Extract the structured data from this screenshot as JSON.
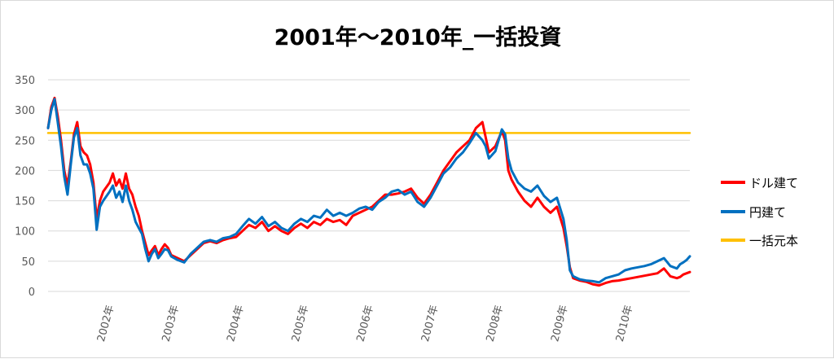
{
  "chart_data": {
    "type": "line",
    "title": "2001年～2010年_一括投資",
    "xlabel": "",
    "ylabel": "",
    "ylim": [
      0,
      350
    ],
    "yticks": [
      0,
      50,
      100,
      150,
      200,
      250,
      300,
      350
    ],
    "xlim": [
      2001.05,
      2010.95
    ],
    "xtick_labels": [
      {
        "x": 2002,
        "label": "2002年"
      },
      {
        "x": 2003,
        "label": "2003年"
      },
      {
        "x": 2004,
        "label": "2004年"
      },
      {
        "x": 2005,
        "label": "2005年"
      },
      {
        "x": 2006,
        "label": "2006年"
      },
      {
        "x": 2007,
        "label": "2007年"
      },
      {
        "x": 2008,
        "label": "2008年"
      },
      {
        "x": 2009,
        "label": "2009年"
      },
      {
        "x": 2010,
        "label": "2010年"
      }
    ],
    "grid": "horizontal",
    "legend_position": "right",
    "series": [
      {
        "name": "ドル建て",
        "color": "#ff0000",
        "points": [
          [
            2001.05,
            270
          ],
          [
            2001.1,
            305
          ],
          [
            2001.15,
            320
          ],
          [
            2001.2,
            290
          ],
          [
            2001.25,
            250
          ],
          [
            2001.3,
            200
          ],
          [
            2001.35,
            175
          ],
          [
            2001.4,
            215
          ],
          [
            2001.45,
            260
          ],
          [
            2001.5,
            280
          ],
          [
            2001.55,
            240
          ],
          [
            2001.6,
            230
          ],
          [
            2001.65,
            225
          ],
          [
            2001.7,
            210
          ],
          [
            2001.75,
            180
          ],
          [
            2001.8,
            120
          ],
          [
            2001.85,
            150
          ],
          [
            2001.9,
            165
          ],
          [
            2002.0,
            180
          ],
          [
            2002.05,
            195
          ],
          [
            2002.1,
            175
          ],
          [
            2002.15,
            185
          ],
          [
            2002.2,
            170
          ],
          [
            2002.25,
            195
          ],
          [
            2002.3,
            170
          ],
          [
            2002.35,
            160
          ],
          [
            2002.4,
            140
          ],
          [
            2002.45,
            125
          ],
          [
            2002.5,
            100
          ],
          [
            2002.55,
            80
          ],
          [
            2002.6,
            60
          ],
          [
            2002.65,
            68
          ],
          [
            2002.7,
            75
          ],
          [
            2002.75,
            60
          ],
          [
            2002.8,
            70
          ],
          [
            2002.85,
            78
          ],
          [
            2002.9,
            72
          ],
          [
            2002.95,
            60
          ],
          [
            2003.05,
            55
          ],
          [
            2003.15,
            50
          ],
          [
            2003.25,
            60
          ],
          [
            2003.35,
            70
          ],
          [
            2003.45,
            80
          ],
          [
            2003.55,
            83
          ],
          [
            2003.65,
            80
          ],
          [
            2003.75,
            85
          ],
          [
            2003.85,
            88
          ],
          [
            2003.95,
            90
          ],
          [
            2004.05,
            100
          ],
          [
            2004.15,
            110
          ],
          [
            2004.25,
            105
          ],
          [
            2004.35,
            115
          ],
          [
            2004.45,
            100
          ],
          [
            2004.55,
            108
          ],
          [
            2004.65,
            100
          ],
          [
            2004.75,
            95
          ],
          [
            2004.85,
            105
          ],
          [
            2004.95,
            112
          ],
          [
            2005.05,
            105
          ],
          [
            2005.15,
            115
          ],
          [
            2005.25,
            110
          ],
          [
            2005.35,
            120
          ],
          [
            2005.45,
            115
          ],
          [
            2005.55,
            118
          ],
          [
            2005.65,
            110
          ],
          [
            2005.75,
            125
          ],
          [
            2005.85,
            130
          ],
          [
            2005.95,
            135
          ],
          [
            2006.05,
            140
          ],
          [
            2006.15,
            150
          ],
          [
            2006.25,
            160
          ],
          [
            2006.35,
            160
          ],
          [
            2006.45,
            162
          ],
          [
            2006.55,
            165
          ],
          [
            2006.65,
            170
          ],
          [
            2006.75,
            155
          ],
          [
            2006.85,
            145
          ],
          [
            2006.95,
            160
          ],
          [
            2007.05,
            180
          ],
          [
            2007.15,
            200
          ],
          [
            2007.25,
            215
          ],
          [
            2007.35,
            230
          ],
          [
            2007.45,
            240
          ],
          [
            2007.55,
            250
          ],
          [
            2007.65,
            270
          ],
          [
            2007.75,
            280
          ],
          [
            2007.8,
            255
          ],
          [
            2007.85,
            230
          ],
          [
            2007.95,
            240
          ],
          [
            2008.05,
            265
          ],
          [
            2008.1,
            250
          ],
          [
            2008.15,
            200
          ],
          [
            2008.2,
            185
          ],
          [
            2008.3,
            165
          ],
          [
            2008.4,
            150
          ],
          [
            2008.5,
            140
          ],
          [
            2008.6,
            155
          ],
          [
            2008.7,
            140
          ],
          [
            2008.8,
            130
          ],
          [
            2008.9,
            140
          ],
          [
            2009.0,
            105
          ],
          [
            2009.05,
            75
          ],
          [
            2009.1,
            40
          ],
          [
            2009.15,
            22
          ],
          [
            2009.25,
            18
          ],
          [
            2009.35,
            16
          ],
          [
            2009.45,
            12
          ],
          [
            2009.55,
            10
          ],
          [
            2009.65,
            14
          ],
          [
            2009.75,
            17
          ],
          [
            2009.85,
            18
          ],
          [
            2009.95,
            20
          ],
          [
            2010.05,
            22
          ],
          [
            2010.15,
            24
          ],
          [
            2010.25,
            26
          ],
          [
            2010.35,
            28
          ],
          [
            2010.45,
            30
          ],
          [
            2010.55,
            38
          ],
          [
            2010.65,
            25
          ],
          [
            2010.75,
            22
          ],
          [
            2010.8,
            24
          ],
          [
            2010.85,
            28
          ],
          [
            2010.9,
            30
          ],
          [
            2010.95,
            32
          ]
        ]
      },
      {
        "name": "円建て",
        "color": "#0070c0",
        "points": [
          [
            2001.05,
            270
          ],
          [
            2001.1,
            300
          ],
          [
            2001.15,
            318
          ],
          [
            2001.2,
            280
          ],
          [
            2001.25,
            240
          ],
          [
            2001.3,
            190
          ],
          [
            2001.35,
            160
          ],
          [
            2001.4,
            210
          ],
          [
            2001.45,
            255
          ],
          [
            2001.5,
            270
          ],
          [
            2001.55,
            225
          ],
          [
            2001.6,
            210
          ],
          [
            2001.65,
            210
          ],
          [
            2001.7,
            195
          ],
          [
            2001.75,
            170
          ],
          [
            2001.8,
            102
          ],
          [
            2001.85,
            140
          ],
          [
            2001.9,
            150
          ],
          [
            2002.0,
            165
          ],
          [
            2002.05,
            175
          ],
          [
            2002.1,
            155
          ],
          [
            2002.15,
            165
          ],
          [
            2002.2,
            148
          ],
          [
            2002.25,
            175
          ],
          [
            2002.3,
            150
          ],
          [
            2002.35,
            135
          ],
          [
            2002.4,
            115
          ],
          [
            2002.45,
            105
          ],
          [
            2002.5,
            95
          ],
          [
            2002.55,
            70
          ],
          [
            2002.6,
            50
          ],
          [
            2002.65,
            62
          ],
          [
            2002.7,
            70
          ],
          [
            2002.75,
            55
          ],
          [
            2002.8,
            62
          ],
          [
            2002.85,
            70
          ],
          [
            2002.9,
            68
          ],
          [
            2002.95,
            58
          ],
          [
            2003.05,
            52
          ],
          [
            2003.15,
            48
          ],
          [
            2003.25,
            62
          ],
          [
            2003.35,
            72
          ],
          [
            2003.45,
            82
          ],
          [
            2003.55,
            85
          ],
          [
            2003.65,
            82
          ],
          [
            2003.75,
            88
          ],
          [
            2003.85,
            90
          ],
          [
            2003.95,
            95
          ],
          [
            2004.05,
            108
          ],
          [
            2004.15,
            120
          ],
          [
            2004.25,
            112
          ],
          [
            2004.35,
            123
          ],
          [
            2004.45,
            108
          ],
          [
            2004.55,
            115
          ],
          [
            2004.65,
            105
          ],
          [
            2004.75,
            100
          ],
          [
            2004.85,
            112
          ],
          [
            2004.95,
            120
          ],
          [
            2005.05,
            115
          ],
          [
            2005.15,
            125
          ],
          [
            2005.25,
            122
          ],
          [
            2005.35,
            135
          ],
          [
            2005.45,
            125
          ],
          [
            2005.55,
            130
          ],
          [
            2005.65,
            125
          ],
          [
            2005.75,
            130
          ],
          [
            2005.85,
            137
          ],
          [
            2005.95,
            140
          ],
          [
            2006.05,
            135
          ],
          [
            2006.15,
            148
          ],
          [
            2006.25,
            155
          ],
          [
            2006.35,
            165
          ],
          [
            2006.45,
            168
          ],
          [
            2006.55,
            160
          ],
          [
            2006.65,
            165
          ],
          [
            2006.75,
            148
          ],
          [
            2006.85,
            140
          ],
          [
            2006.95,
            155
          ],
          [
            2007.05,
            175
          ],
          [
            2007.15,
            195
          ],
          [
            2007.25,
            205
          ],
          [
            2007.35,
            220
          ],
          [
            2007.45,
            230
          ],
          [
            2007.55,
            245
          ],
          [
            2007.65,
            262
          ],
          [
            2007.75,
            250
          ],
          [
            2007.8,
            240
          ],
          [
            2007.85,
            220
          ],
          [
            2007.95,
            232
          ],
          [
            2008.05,
            268
          ],
          [
            2008.1,
            260
          ],
          [
            2008.15,
            220
          ],
          [
            2008.2,
            200
          ],
          [
            2008.3,
            180
          ],
          [
            2008.4,
            170
          ],
          [
            2008.5,
            165
          ],
          [
            2008.6,
            175
          ],
          [
            2008.7,
            158
          ],
          [
            2008.8,
            148
          ],
          [
            2008.9,
            155
          ],
          [
            2009.0,
            120
          ],
          [
            2009.05,
            85
          ],
          [
            2009.1,
            35
          ],
          [
            2009.15,
            25
          ],
          [
            2009.25,
            20
          ],
          [
            2009.35,
            18
          ],
          [
            2009.45,
            17
          ],
          [
            2009.55,
            15
          ],
          [
            2009.65,
            22
          ],
          [
            2009.75,
            25
          ],
          [
            2009.85,
            28
          ],
          [
            2009.95,
            35
          ],
          [
            2010.05,
            38
          ],
          [
            2010.15,
            40
          ],
          [
            2010.25,
            42
          ],
          [
            2010.35,
            45
          ],
          [
            2010.45,
            50
          ],
          [
            2010.55,
            55
          ],
          [
            2010.65,
            42
          ],
          [
            2010.75,
            38
          ],
          [
            2010.8,
            45
          ],
          [
            2010.85,
            48
          ],
          [
            2010.9,
            52
          ],
          [
            2010.95,
            58
          ]
        ]
      },
      {
        "name": "一括元本",
        "color": "#ffc000",
        "points": [
          [
            2001.05,
            262
          ],
          [
            2010.95,
            262
          ]
        ]
      }
    ]
  }
}
